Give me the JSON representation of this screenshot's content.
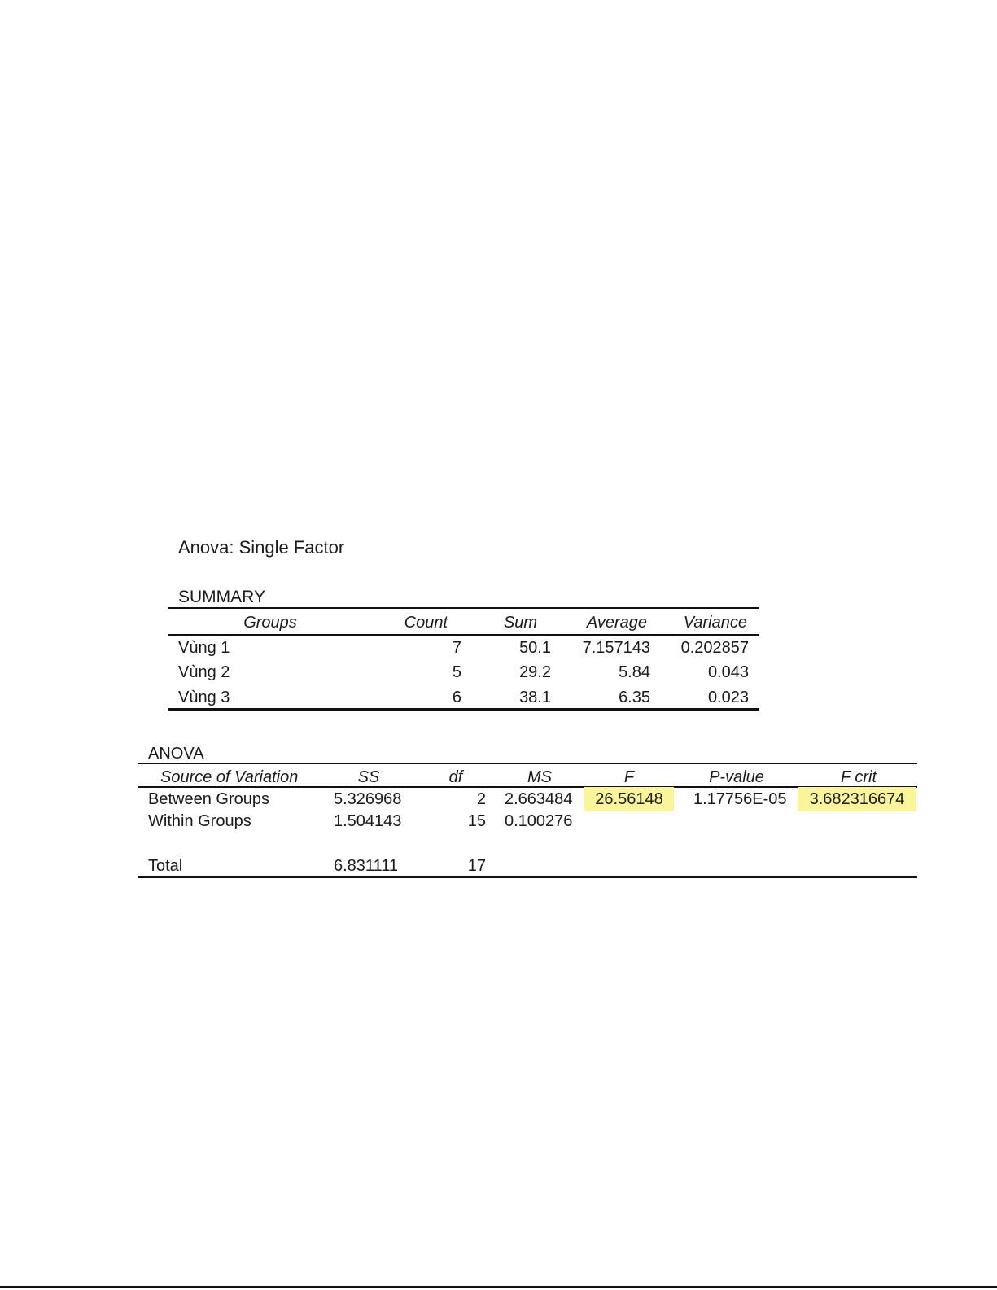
{
  "title": "Anova: Single Factor",
  "summary": {
    "label": "SUMMARY",
    "headers": [
      "Groups",
      "Count",
      "Sum",
      "Average",
      "Variance"
    ],
    "rows": [
      [
        "Vùng 1",
        "7",
        "50.1",
        "7.157143",
        "0.202857"
      ],
      [
        "Vùng 2",
        "5",
        "29.2",
        "5.84",
        "0.043"
      ],
      [
        "Vùng 3",
        "6",
        "38.1",
        "6.35",
        "0.023"
      ]
    ]
  },
  "anova": {
    "label": "ANOVA",
    "headers": [
      "Source of Variation",
      "SS",
      "df",
      "MS",
      "F",
      "P-value",
      "F crit"
    ],
    "rows": [
      [
        "Between Groups",
        "5.326968",
        "2",
        "2.663484",
        "26.56148",
        "1.17756E-05",
        "3.682316674"
      ],
      [
        "Within Groups",
        "1.504143",
        "15",
        "0.100276",
        "",
        "",
        ""
      ],
      [
        "Total",
        "6.831111",
        "17",
        "",
        "",
        "",
        ""
      ]
    ],
    "highlight_color": "#fbf59a"
  }
}
